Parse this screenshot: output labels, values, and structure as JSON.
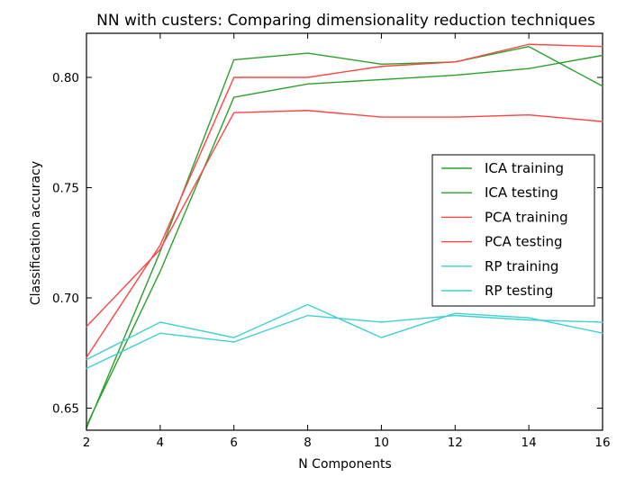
{
  "chart_data": {
    "type": "line",
    "title": "NN with custers: Comparing dimensionality reduction techniques",
    "xlabel": "N Components",
    "ylabel": "Classification accuracy",
    "xlim": [
      2,
      16
    ],
    "ylim": [
      0.64,
      0.82
    ],
    "x_ticks": [
      2,
      4,
      6,
      8,
      10,
      12,
      14,
      16
    ],
    "y_ticks": [
      0.65,
      0.7,
      0.75,
      0.8
    ],
    "y_tick_labels": [
      "0.65",
      "0.70",
      "0.75",
      "0.80"
    ],
    "x": [
      2,
      4,
      6,
      8,
      10,
      12,
      14,
      16
    ],
    "grid": false,
    "legend_position": "right",
    "series": [
      {
        "name": "ICA training",
        "color": "#2ca02c",
        "values": [
          0.642,
          0.712,
          0.791,
          0.797,
          0.799,
          0.801,
          0.804,
          0.81
        ]
      },
      {
        "name": "ICA testing",
        "color": "#2ca02c",
        "values": [
          0.641,
          0.721,
          0.808,
          0.811,
          0.806,
          0.807,
          0.814,
          0.796
        ]
      },
      {
        "name": "PCA training",
        "color": "#ff4444",
        "values": [
          0.673,
          0.724,
          0.8,
          0.8,
          0.805,
          0.807,
          0.815,
          0.814
        ]
      },
      {
        "name": "PCA testing",
        "color": "#ff4444",
        "values": [
          0.687,
          0.722,
          0.784,
          0.785,
          0.782,
          0.782,
          0.783,
          0.78
        ]
      },
      {
        "name": "RP training",
        "color": "#40d0d0",
        "values": [
          0.668,
          0.684,
          0.68,
          0.692,
          0.689,
          0.692,
          0.69,
          0.689
        ]
      },
      {
        "name": "RP testing",
        "color": "#40d0d0",
        "values": [
          0.672,
          0.689,
          0.682,
          0.697,
          0.682,
          0.693,
          0.691,
          0.684
        ]
      }
    ]
  }
}
